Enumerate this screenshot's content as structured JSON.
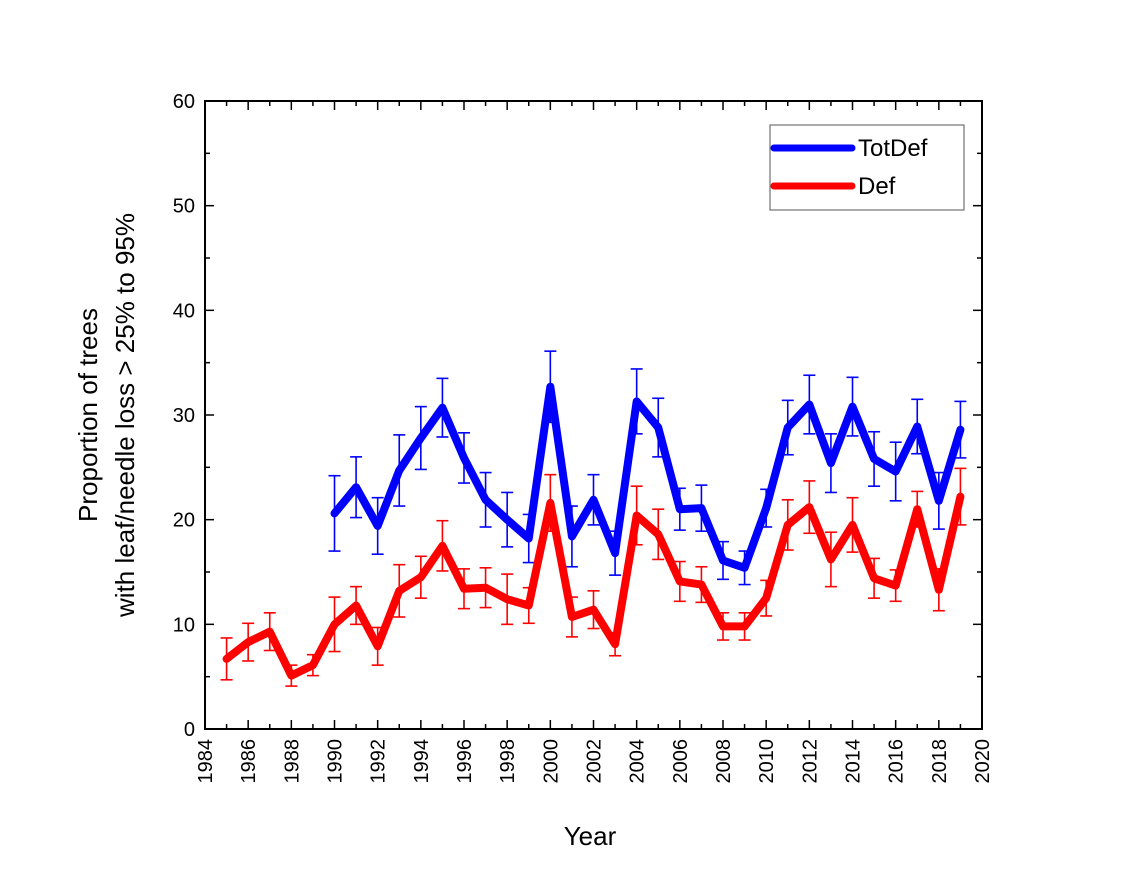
{
  "chart_data": {
    "type": "line",
    "xlabel": "Year",
    "ylabel": [
      "Proportion of trees",
      "with leaf/needle loss > 25% to 95%"
    ],
    "xlim": [
      1984,
      2020
    ],
    "ylim": [
      0,
      60
    ],
    "xticks": [
      1984,
      1986,
      1988,
      1990,
      1992,
      1994,
      1996,
      1998,
      2000,
      2002,
      2004,
      2006,
      2008,
      2010,
      2012,
      2014,
      2016,
      2018,
      2020
    ],
    "yticks": [
      0,
      10,
      20,
      30,
      40,
      50,
      60
    ],
    "legend_position": "top-right",
    "grid": false,
    "series": [
      {
        "name": "TotDef",
        "color": "#0000ff",
        "x": [
          1990,
          1991,
          1992,
          1993,
          1994,
          1995,
          1996,
          1997,
          1998,
          1999,
          2000,
          2001,
          2002,
          2003,
          2004,
          2005,
          2006,
          2007,
          2008,
          2009,
          2010,
          2011,
          2012,
          2013,
          2014,
          2015,
          2016,
          2017,
          2018,
          2019
        ],
        "y": [
          20.6,
          23.1,
          19.4,
          24.7,
          27.8,
          30.7,
          25.9,
          21.9,
          20.0,
          18.2,
          32.7,
          18.4,
          21.9,
          16.8,
          31.3,
          28.8,
          21.0,
          21.1,
          16.1,
          15.4,
          21.1,
          28.8,
          31.0,
          25.4,
          30.8,
          25.8,
          24.6,
          28.9,
          21.8,
          28.6
        ],
        "err": [
          3.6,
          2.9,
          2.7,
          3.4,
          3.0,
          2.8,
          2.4,
          2.6,
          2.6,
          2.3,
          3.4,
          2.9,
          2.4,
          2.1,
          3.1,
          2.8,
          2.0,
          2.2,
          1.8,
          1.6,
          1.8,
          2.6,
          2.8,
          2.8,
          2.8,
          2.6,
          2.8,
          2.6,
          2.7,
          2.7
        ]
      },
      {
        "name": "Def",
        "color": "#ff0000",
        "x": [
          1985,
          1986,
          1987,
          1988,
          1989,
          1990,
          1991,
          1992,
          1993,
          1994,
          1995,
          1996,
          1997,
          1998,
          1999,
          2000,
          2001,
          2002,
          2003,
          2004,
          2005,
          2006,
          2007,
          2008,
          2009,
          2010,
          2011,
          2012,
          2013,
          2014,
          2015,
          2016,
          2017,
          2018,
          2019
        ],
        "y": [
          6.7,
          8.3,
          9.3,
          5.1,
          6.1,
          10.0,
          11.8,
          7.9,
          13.2,
          14.5,
          17.5,
          13.4,
          13.5,
          12.4,
          11.8,
          21.6,
          10.7,
          11.4,
          8.1,
          20.4,
          18.6,
          14.1,
          13.8,
          9.8,
          9.8,
          12.5,
          19.5,
          21.2,
          16.2,
          19.5,
          14.4,
          13.7,
          21.0,
          13.3,
          22.2
        ],
        "err": [
          2.0,
          1.8,
          1.8,
          1.0,
          1.0,
          2.6,
          1.8,
          1.8,
          2.5,
          2.0,
          2.4,
          1.9,
          1.9,
          2.4,
          1.7,
          2.7,
          1.9,
          1.8,
          1.1,
          2.8,
          2.4,
          1.9,
          1.7,
          1.3,
          1.3,
          1.7,
          2.4,
          2.5,
          2.6,
          2.6,
          1.9,
          1.5,
          1.7,
          2.0,
          2.7
        ]
      }
    ]
  }
}
